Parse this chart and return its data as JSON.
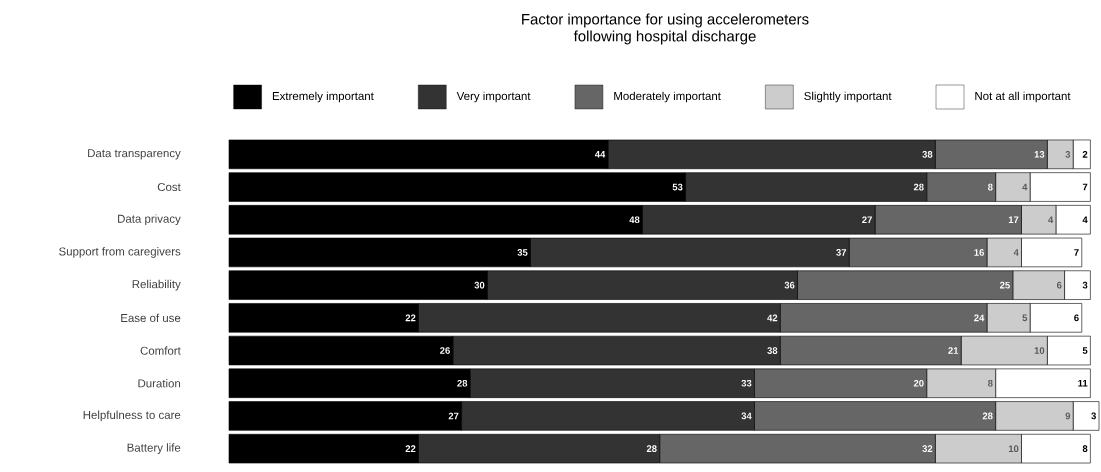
{
  "chart_data": {
    "type": "bar",
    "orientation": "horizontal",
    "stacked": true,
    "data_labels": true,
    "legend": "top",
    "title": "Factor importance for using accelerometers\nfollowing hospital discharge",
    "categories": [
      "Data transparency",
      "Cost",
      "Data privacy",
      "Support from caregivers",
      "Reliability",
      "Ease of use",
      "Comfort",
      "Duration",
      "Helpfulness to care",
      "Battery life"
    ],
    "series": [
      {
        "name": "Extremely important",
        "color": "#000000",
        "values": [
          44,
          53,
          48,
          35,
          30,
          22,
          26,
          28,
          27,
          22
        ]
      },
      {
        "name": "Very important",
        "color": "#333333",
        "values": [
          38,
          28,
          27,
          37,
          36,
          42,
          38,
          33,
          34,
          28
        ]
      },
      {
        "name": "Moderately important",
        "color": "#666666",
        "values": [
          13,
          8,
          17,
          16,
          25,
          24,
          21,
          20,
          28,
          32
        ]
      },
      {
        "name": "Slightly important",
        "color": "#cccccc",
        "values": [
          3,
          4,
          4,
          4,
          6,
          5,
          10,
          8,
          9,
          10
        ]
      },
      {
        "name": "Not at all important",
        "color": "#ffffff",
        "values": [
          2,
          7,
          4,
          7,
          3,
          6,
          5,
          11,
          3,
          8
        ]
      }
    ]
  }
}
